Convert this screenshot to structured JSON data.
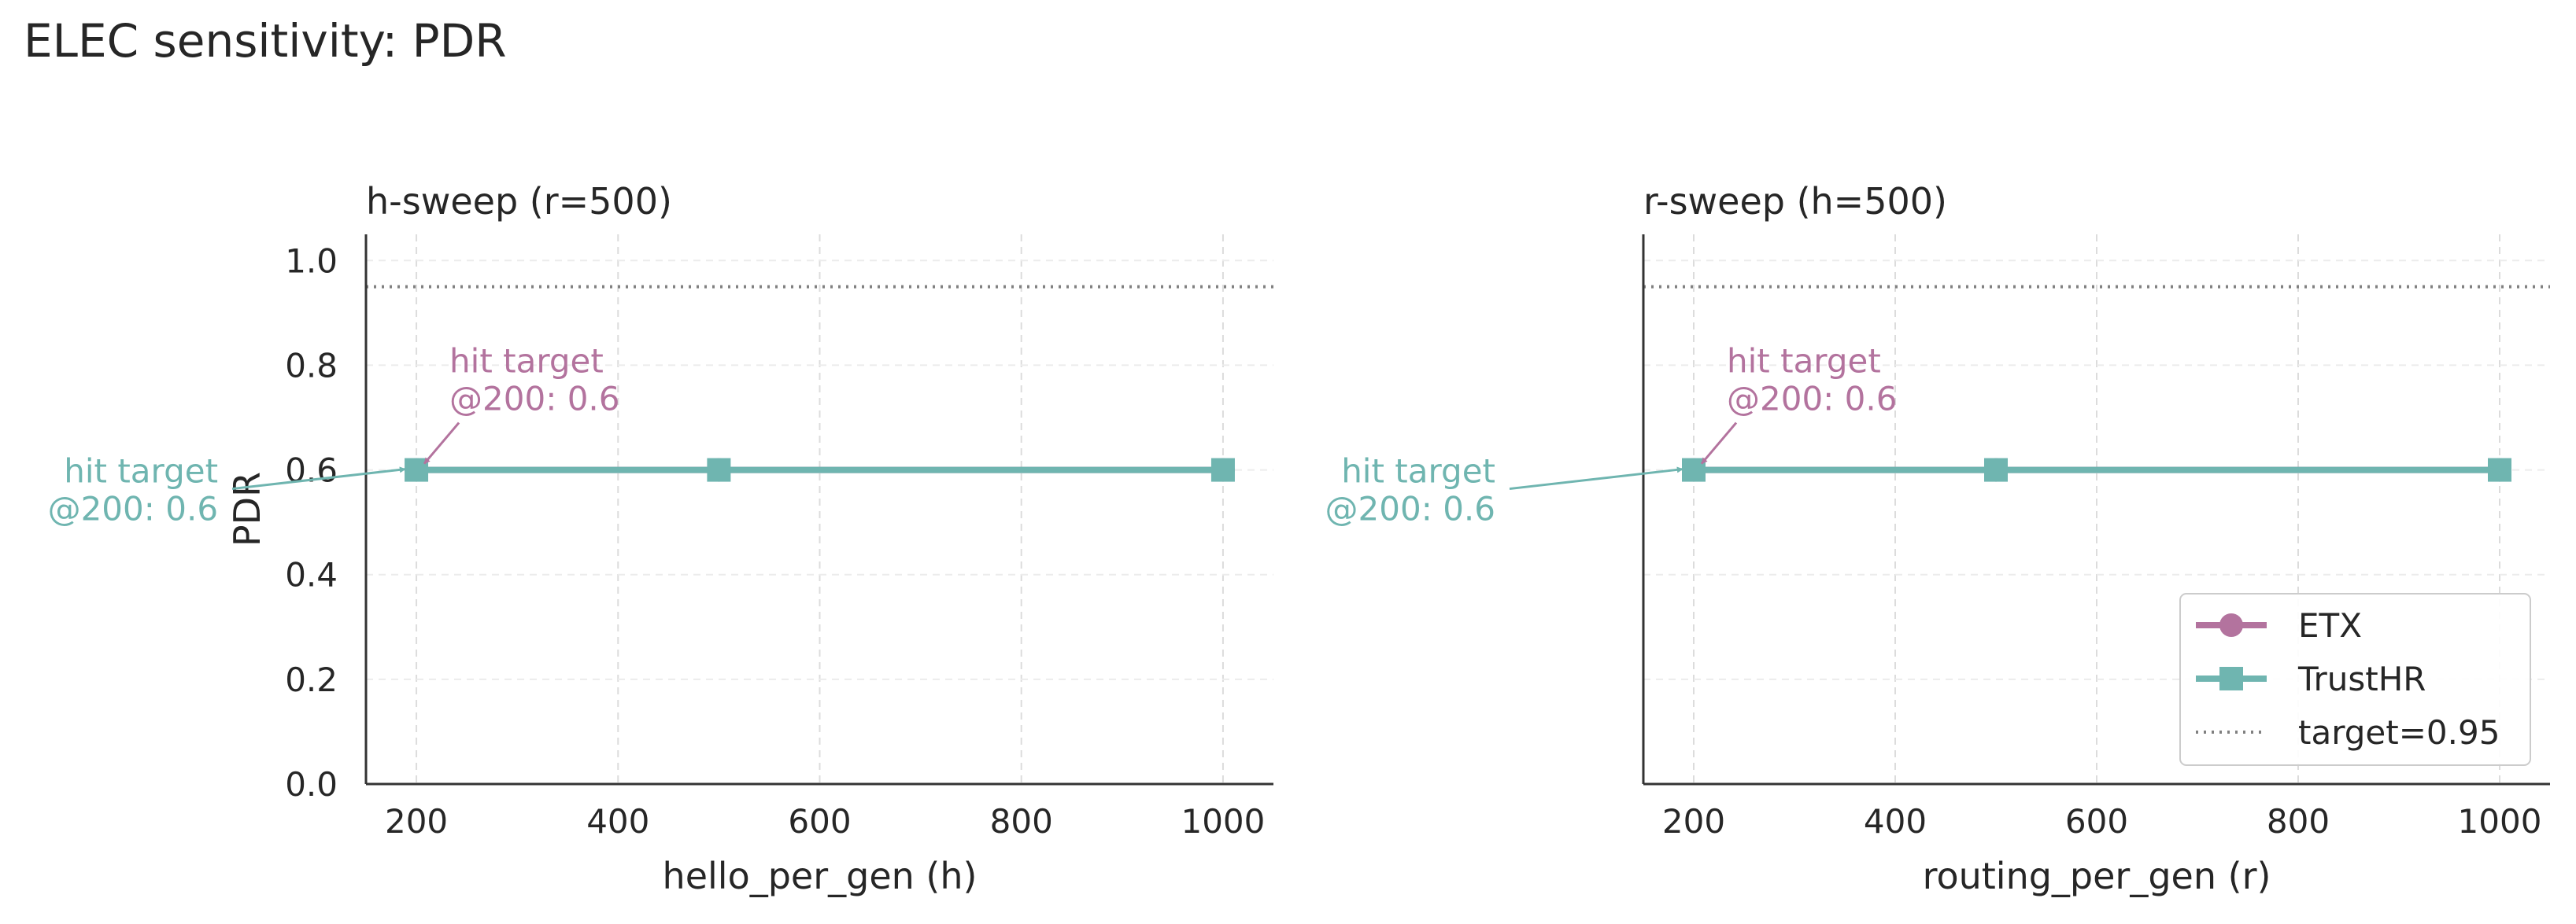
{
  "figure": {
    "title": "ELEC sensitivity: PDR"
  },
  "colors": {
    "etx": "#b3739e",
    "trusthr": "#6fb5b0",
    "target": "#808080"
  },
  "chart_data": [
    {
      "type": "line",
      "title": "h-sweep (r=500)",
      "xlabel": "hello_per_gen (h)",
      "ylabel": "PDR",
      "xlim": [
        150,
        1050
      ],
      "ylim": [
        0.0,
        1.05
      ],
      "xticks": [
        "200",
        "400",
        "600",
        "800",
        "1000"
      ],
      "yticks": [
        "0.0",
        "0.2",
        "0.4",
        "0.6",
        "0.8",
        "1.0"
      ],
      "x": [
        200,
        500,
        1000
      ],
      "series": [
        {
          "name": "ETX",
          "marker": "circle",
          "values": [
            0.6,
            0.6,
            0.6
          ]
        },
        {
          "name": "TrustHR",
          "marker": "square",
          "values": [
            0.6,
            0.6,
            0.6
          ]
        }
      ],
      "hline": {
        "name": "target=0.95",
        "value": 0.95,
        "style": "dotted"
      },
      "grid": true,
      "legend": null,
      "annotations": [
        {
          "series": "ETX",
          "line1": "hit target",
          "line2": "@200: 0.6",
          "x": 200,
          "y": 0.6
        },
        {
          "series": "TrustHR",
          "line1": "hit target",
          "line2": "@200: 0.6",
          "x": 200,
          "y": 0.6
        }
      ]
    },
    {
      "type": "line",
      "title": "r-sweep (h=500)",
      "xlabel": "routing_per_gen (r)",
      "ylabel": "",
      "xlim": [
        150,
        1050
      ],
      "ylim": [
        0.0,
        1.05
      ],
      "xticks": [
        "200",
        "400",
        "600",
        "800",
        "1000"
      ],
      "yticks": [],
      "x": [
        200,
        500,
        1000
      ],
      "series": [
        {
          "name": "ETX",
          "marker": "circle",
          "values": [
            0.6,
            0.6,
            0.6
          ]
        },
        {
          "name": "TrustHR",
          "marker": "square",
          "values": [
            0.6,
            0.6,
            0.6
          ]
        }
      ],
      "hline": {
        "name": "target=0.95",
        "value": 0.95,
        "style": "dotted"
      },
      "grid": true,
      "legend": "lower-right",
      "annotations": [
        {
          "series": "ETX",
          "line1": "hit target",
          "line2": "@200: 0.6",
          "x": 200,
          "y": 0.6
        },
        {
          "series": "TrustHR",
          "line1": "hit target",
          "line2": "@200: 0.6",
          "x": 200,
          "y": 0.6
        }
      ]
    }
  ]
}
